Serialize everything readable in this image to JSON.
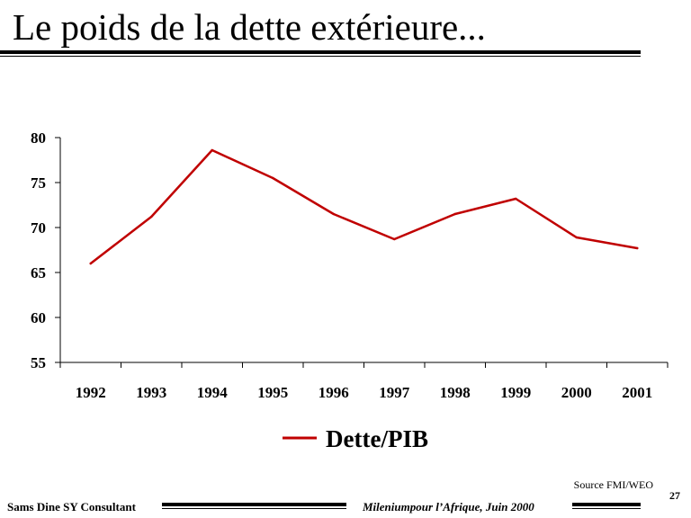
{
  "slide": {
    "title": "Le poids de la dette extérieure...",
    "source": "Source FMI/WEO",
    "page_number": "27",
    "footer_left": "Sams Dine SY Consultant",
    "footer_right": "Mileniumpour l’Afrique, Juin 2000"
  },
  "chart_data": {
    "type": "line",
    "title": "",
    "xlabel": "",
    "ylabel": "",
    "categories": [
      "1992",
      "1993",
      "1994",
      "1995",
      "1996",
      "1997",
      "1998",
      "1999",
      "2000",
      "2001"
    ],
    "series": [
      {
        "name": "Dette/PIB",
        "color": "#c00000",
        "values": [
          66.0,
          71.2,
          78.6,
          75.5,
          71.5,
          68.7,
          71.5,
          73.2,
          68.9,
          67.7
        ]
      }
    ],
    "ylim": [
      55,
      80
    ],
    "yticks": [
      "55",
      "60",
      "65",
      "70",
      "75",
      "80"
    ],
    "grid": false,
    "legend": "bottom"
  }
}
